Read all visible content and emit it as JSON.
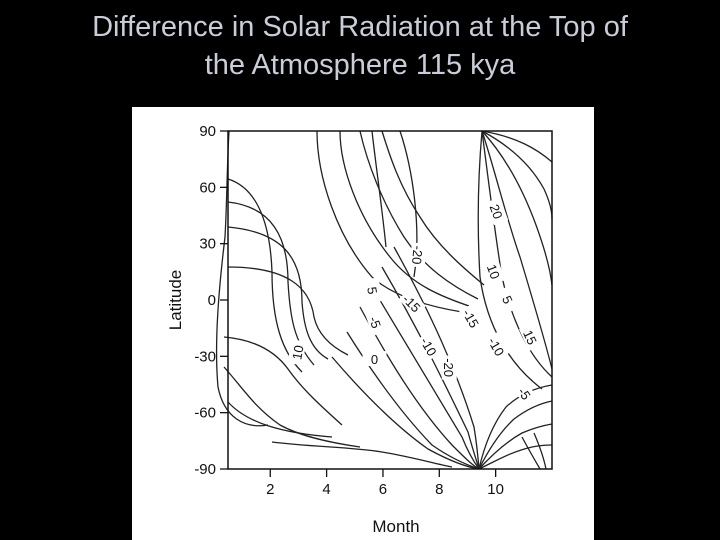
{
  "slide": {
    "title_line1": "Difference in Solar Radiation at the Top of",
    "title_line2": "the Atmosphere 115 kya"
  },
  "chart_data": {
    "type": "contour",
    "title": "Difference in Solar Radiation at the Top of the Atmosphere 115 kya",
    "xlabel": "Month",
    "ylabel": "Latitude",
    "xlim": [
      0.5,
      12
    ],
    "ylim": [
      -90,
      90
    ],
    "x_ticks": [
      2,
      4,
      6,
      8,
      10
    ],
    "y_ticks": [
      90,
      60,
      30,
      0,
      -30,
      -60,
      -90
    ],
    "grid": false,
    "contour_labels": [
      {
        "text": "20",
        "month": 10.0,
        "lat": 47,
        "rotate": 70
      },
      {
        "text": "-20",
        "month": 7.2,
        "lat": 24,
        "rotate": 95
      },
      {
        "text": "10",
        "month": 9.9,
        "lat": 15,
        "rotate": 70
      },
      {
        "text": "5",
        "month": 10.4,
        "lat": 0,
        "rotate": 65
      },
      {
        "text": "5",
        "month": 5.6,
        "lat": 5,
        "rotate": 80
      },
      {
        "text": "-15",
        "month": 7.0,
        "lat": -2,
        "rotate": 45
      },
      {
        "text": "-15",
        "month": 9.1,
        "lat": -10,
        "rotate": 60
      },
      {
        "text": "15",
        "month": 11.2,
        "lat": -20,
        "rotate": 65
      },
      {
        "text": "-5",
        "month": 5.7,
        "lat": -12,
        "rotate": 70
      },
      {
        "text": "-10",
        "month": 7.6,
        "lat": -25,
        "rotate": 60
      },
      {
        "text": "-10",
        "month": 10.0,
        "lat": -25,
        "rotate": 60
      },
      {
        "text": "10",
        "month": 3.0,
        "lat": -28,
        "rotate": -80
      },
      {
        "text": "0",
        "month": 5.7,
        "lat": -32,
        "rotate": 0
      },
      {
        "text": "-20",
        "month": 8.3,
        "lat": -36,
        "rotate": 90
      },
      {
        "text": "-5",
        "month": 11.0,
        "lat": -50,
        "rotate": 55
      }
    ]
  }
}
